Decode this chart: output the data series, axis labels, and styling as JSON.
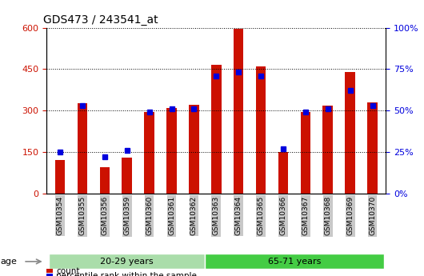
{
  "title": "GDS473 / 243541_at",
  "samples": [
    "GSM10354",
    "GSM10355",
    "GSM10356",
    "GSM10359",
    "GSM10360",
    "GSM10361",
    "GSM10362",
    "GSM10363",
    "GSM10364",
    "GSM10365",
    "GSM10366",
    "GSM10367",
    "GSM10368",
    "GSM10369",
    "GSM10370"
  ],
  "counts": [
    120,
    325,
    95,
    130,
    295,
    310,
    320,
    465,
    595,
    460,
    150,
    295,
    318,
    440,
    330
  ],
  "percentiles": [
    25,
    53,
    22,
    26,
    49,
    51,
    51,
    71,
    73,
    71,
    27,
    49,
    51,
    62,
    53
  ],
  "groups": [
    {
      "label": "20-29 years",
      "start": 0,
      "end": 6,
      "color": "#aaddaa"
    },
    {
      "label": "65-71 years",
      "start": 7,
      "end": 14,
      "color": "#44cc44"
    }
  ],
  "age_label": "age",
  "ylim_left": [
    0,
    600
  ],
  "ylim_right": [
    0,
    100
  ],
  "yticks_left": [
    0,
    150,
    300,
    450,
    600
  ],
  "yticks_right": [
    0,
    25,
    50,
    75,
    100
  ],
  "bar_color_red": "#cc1100",
  "bar_color_blue": "#0000dd",
  "tick_bg_color": "#c8c8c8",
  "legend_count_label": "count",
  "legend_pct_label": "percentile rank within the sample",
  "background_color": "#ffffff",
  "left_axis_color": "#cc1100",
  "right_axis_color": "#0000dd",
  "bar_width": 0.45,
  "pct_marker_size": 5
}
